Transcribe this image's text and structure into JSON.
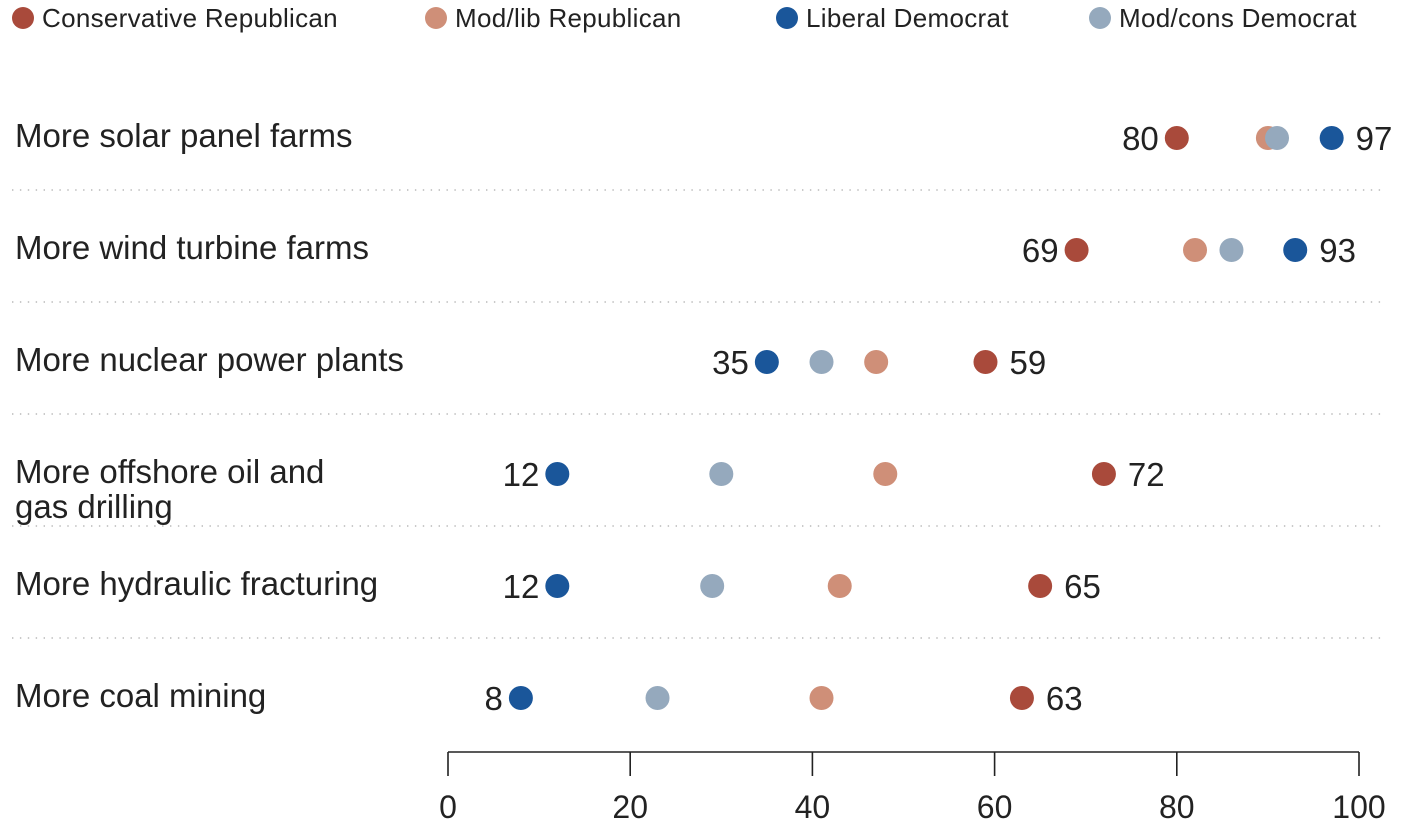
{
  "chart_data": {
    "type": "scatter",
    "legend_position": "top",
    "series": [
      {
        "name": "Conservative Republican",
        "color": "#a94a3b",
        "values": [
          80,
          69,
          59,
          72,
          65,
          63
        ]
      },
      {
        "name": "Mod/lib Republican",
        "color": "#cf8f78",
        "values": [
          90,
          82,
          47,
          48,
          43,
          41
        ]
      },
      {
        "name": "Liberal Democrat",
        "color": "#1a569a",
        "values": [
          97,
          93,
          35,
          12,
          12,
          8
        ]
      },
      {
        "name": "Mod/cons Democrat",
        "color": "#95a9bd",
        "values": [
          91,
          86,
          41,
          30,
          29,
          23
        ]
      }
    ],
    "categories": [
      {
        "lines": [
          "More solar panel farms"
        ],
        "low_label": "80",
        "high_label": "97",
        "low": 80,
        "high": 97
      },
      {
        "lines": [
          "More wind turbine farms"
        ],
        "low_label": "69",
        "high_label": "93",
        "low": 69,
        "high": 93
      },
      {
        "lines": [
          "More nuclear power plants"
        ],
        "low_label": "35",
        "high_label": "59",
        "low": 35,
        "high": 59
      },
      {
        "lines": [
          "More offshore oil and",
          "gas drilling"
        ],
        "low_label": "12",
        "high_label": "72",
        "low": 12,
        "high": 72
      },
      {
        "lines": [
          "More hydraulic fracturing"
        ],
        "low_label": "12",
        "high_label": "65",
        "low": 12,
        "high": 65
      },
      {
        "lines": [
          "More coal mining"
        ],
        "low_label": "8",
        "high_label": "63",
        "low": 8,
        "high": 63
      }
    ],
    "xlim": [
      0,
      100
    ],
    "xticks": [
      "0",
      "20",
      "40",
      "60",
      "80",
      "100"
    ],
    "grid": false
  }
}
